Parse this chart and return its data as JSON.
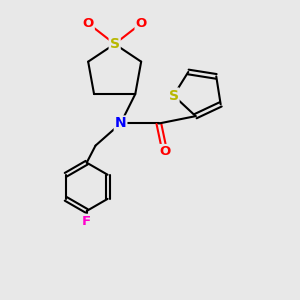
{
  "bg_color": "#e8e8e8",
  "atom_colors": {
    "S_sulfolane": "#b8b800",
    "S_thiophene": "#b8b800",
    "O": "#ff0000",
    "N": "#0000ff",
    "F": "#ff00cc",
    "C": "#000000"
  },
  "bond_color": "#000000",
  "figsize": [
    3.0,
    3.0
  ],
  "dpi": 100
}
